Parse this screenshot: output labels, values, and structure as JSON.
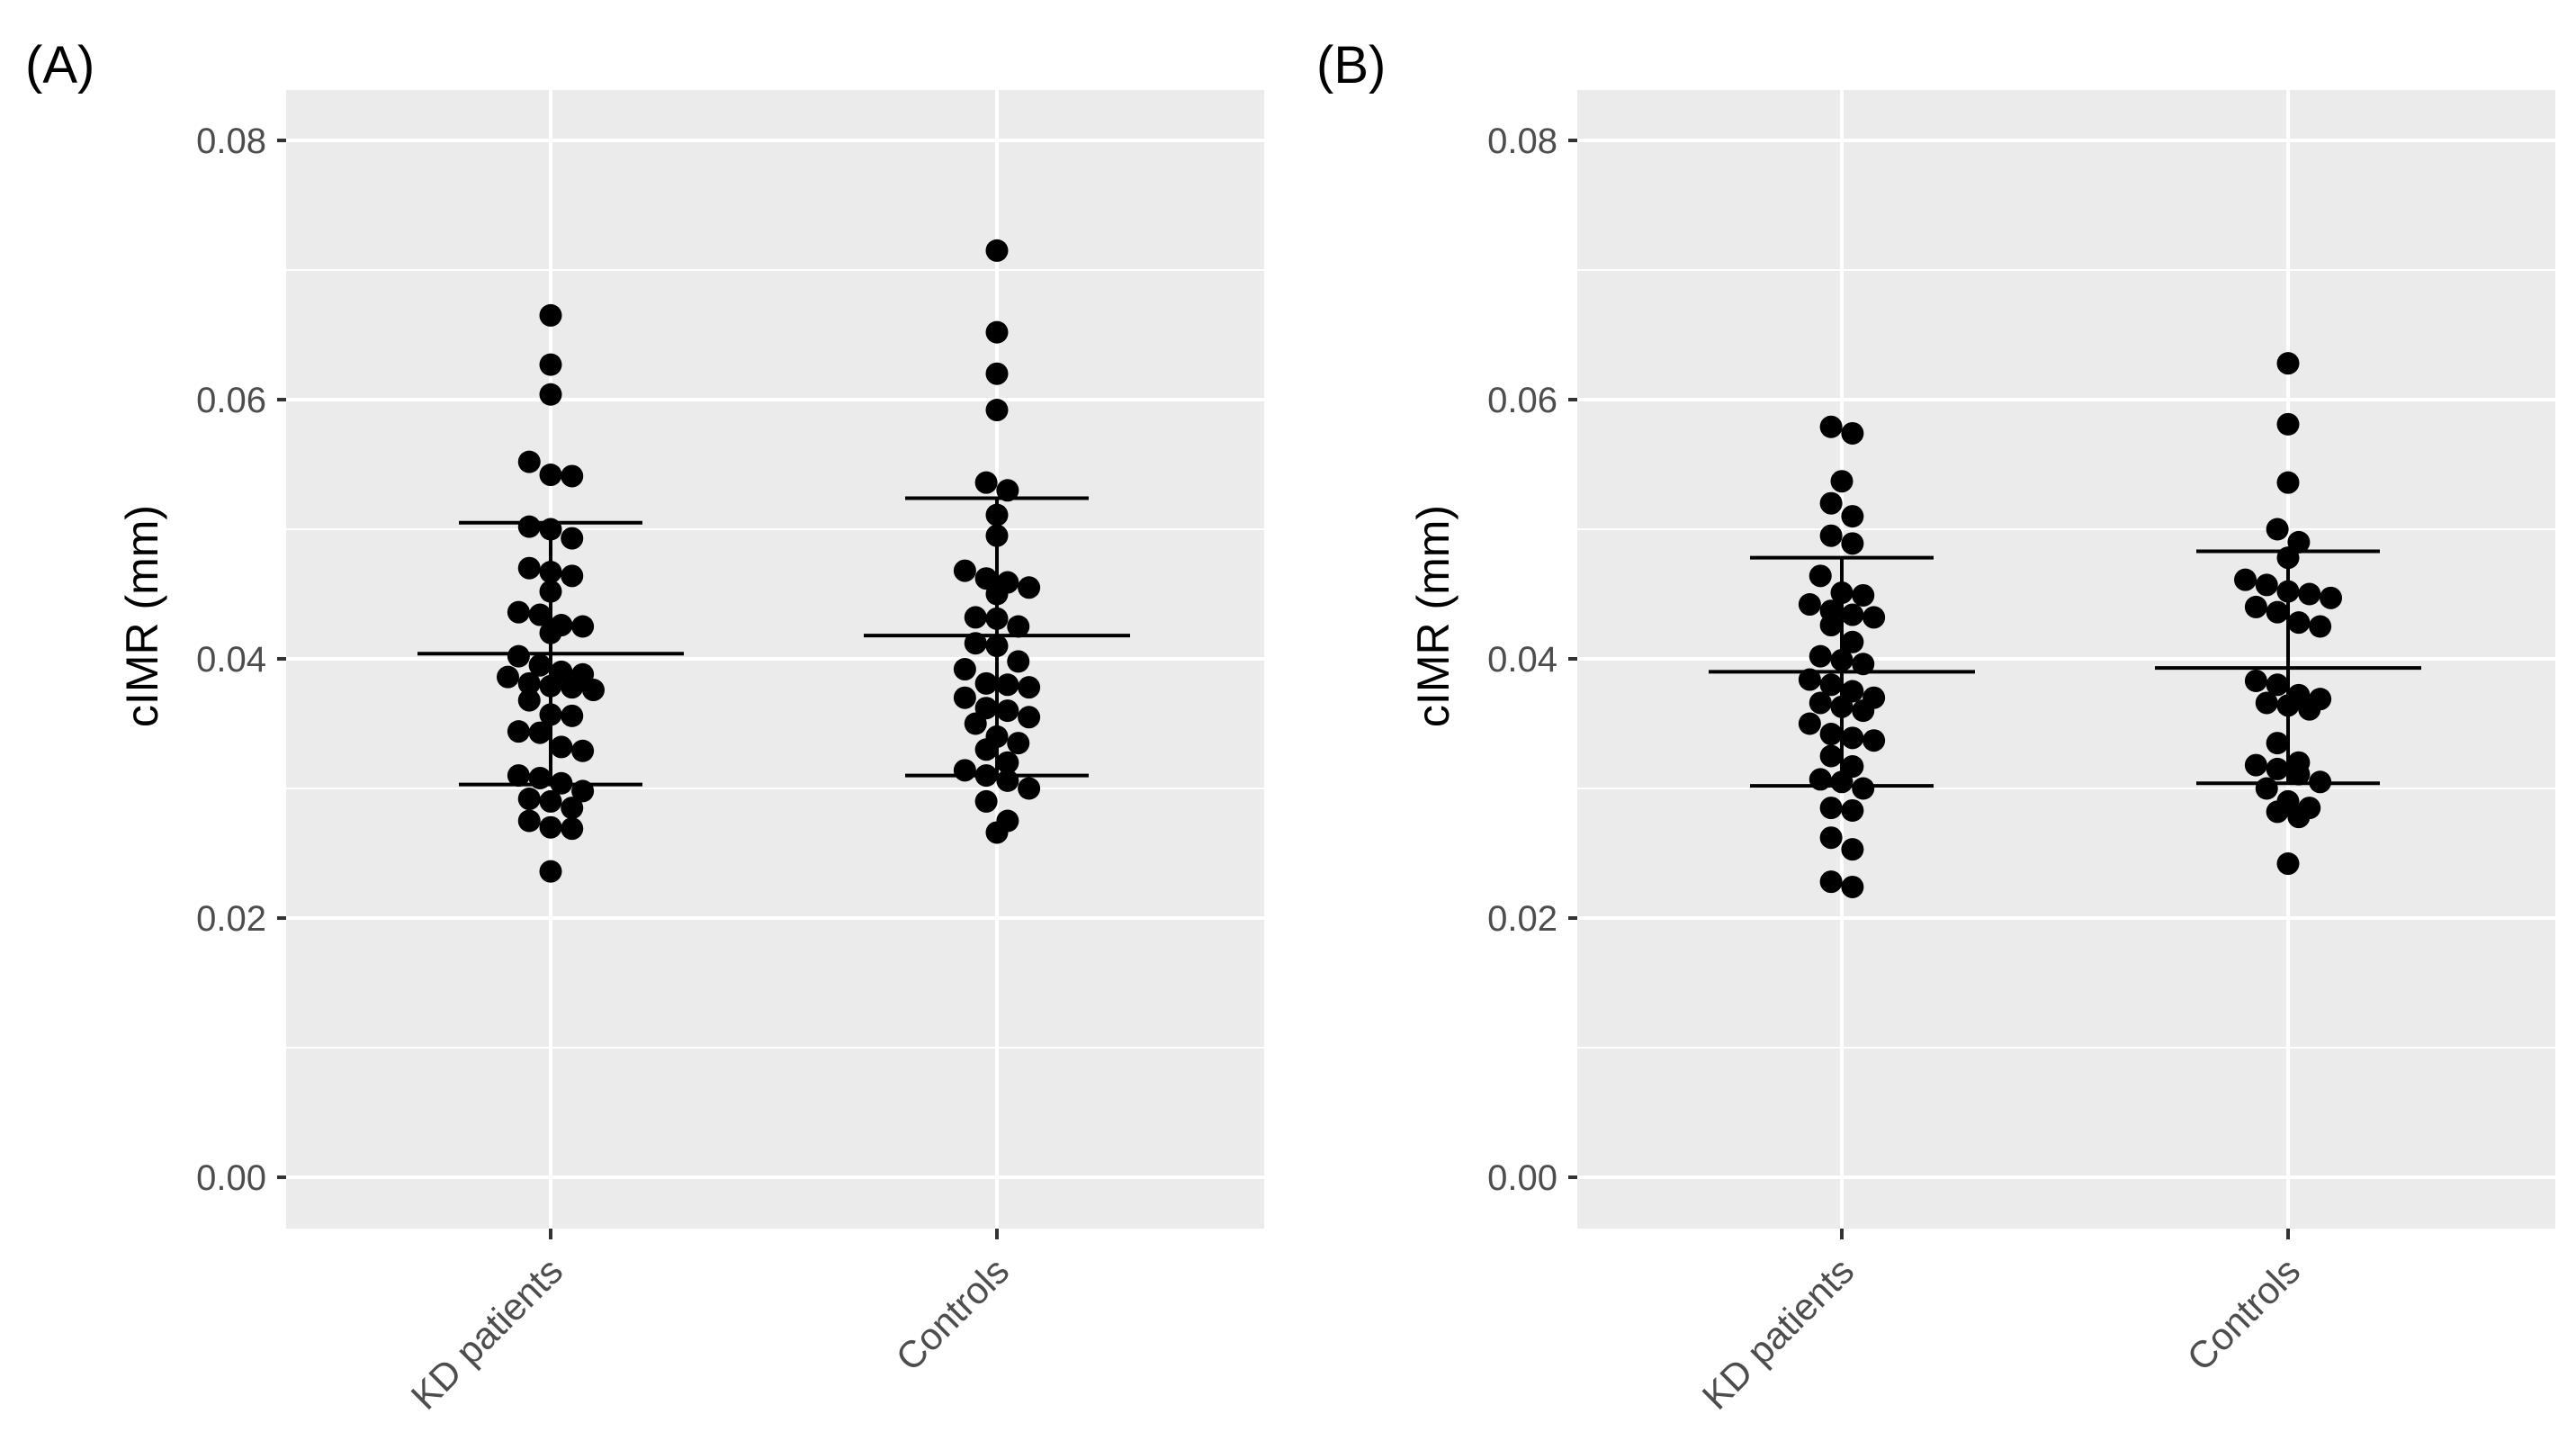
{
  "chart_data": [
    {
      "panel_label": "(A)",
      "type": "scatter",
      "subtype": "dot plot with mean ± SD",
      "ylabel": "cIMR (mm)",
      "xlabel": "",
      "ylim": [
        -0.004,
        0.084
      ],
      "yticks": [
        "0.00",
        "0.02",
        "0.04",
        "0.06",
        "0.08"
      ],
      "categories": [
        "KD patients",
        "Controls"
      ],
      "groups": [
        {
          "name": "KD patients",
          "mean": 0.0404,
          "upper": 0.0505,
          "lower": 0.0303,
          "values": [
            0.0665,
            0.0627,
            0.0604,
            0.0552,
            0.0542,
            0.0541,
            0.0502,
            0.05,
            0.0493,
            0.047,
            0.0467,
            0.0464,
            0.0452,
            0.0436,
            0.0434,
            0.0426,
            0.0425,
            0.042,
            0.0402,
            0.0395,
            0.039,
            0.0388,
            0.0386,
            0.0381,
            0.0379,
            0.0378,
            0.0376,
            0.0368,
            0.0357,
            0.0356,
            0.0344,
            0.0343,
            0.0332,
            0.0329,
            0.031,
            0.0308,
            0.0304,
            0.0298,
            0.0292,
            0.029,
            0.0285,
            0.0275,
            0.027,
            0.0269,
            0.0236
          ]
        },
        {
          "name": "Controls",
          "mean": 0.0418,
          "upper": 0.0524,
          "lower": 0.031,
          "values": [
            0.0715,
            0.0652,
            0.062,
            0.0592,
            0.0536,
            0.053,
            0.0511,
            0.0495,
            0.0468,
            0.0462,
            0.0459,
            0.0455,
            0.045,
            0.0432,
            0.0431,
            0.0425,
            0.0412,
            0.041,
            0.0398,
            0.0392,
            0.0381,
            0.038,
            0.0378,
            0.037,
            0.0362,
            0.036,
            0.0355,
            0.035,
            0.034,
            0.0335,
            0.033,
            0.032,
            0.0314,
            0.031,
            0.0306,
            0.03,
            0.029,
            0.0275,
            0.0266
          ]
        }
      ]
    },
    {
      "panel_label": "(B)",
      "type": "scatter",
      "subtype": "dot plot with mean ± SD",
      "ylabel": "cIMR (mm)",
      "xlabel": "",
      "ylim": [
        -0.004,
        0.084
      ],
      "yticks": [
        "0.00",
        "0.02",
        "0.04",
        "0.06",
        "0.08"
      ],
      "categories": [
        "KD patients",
        "Controls"
      ],
      "groups": [
        {
          "name": "KD patients",
          "mean": 0.039,
          "upper": 0.0478,
          "lower": 0.0302,
          "values": [
            0.0579,
            0.0574,
            0.0537,
            0.052,
            0.051,
            0.0495,
            0.0489,
            0.0464,
            0.0451,
            0.0449,
            0.0442,
            0.0437,
            0.0434,
            0.0432,
            0.0426,
            0.0413,
            0.0402,
            0.0399,
            0.0396,
            0.0384,
            0.038,
            0.0375,
            0.037,
            0.0366,
            0.0363,
            0.036,
            0.035,
            0.0342,
            0.0339,
            0.0337,
            0.0325,
            0.0317,
            0.0307,
            0.0305,
            0.03,
            0.0285,
            0.0283,
            0.0262,
            0.0253,
            0.0228,
            0.0224
          ]
        },
        {
          "name": "Controls",
          "mean": 0.0393,
          "upper": 0.0483,
          "lower": 0.0304,
          "values": [
            0.0628,
            0.0581,
            0.0536,
            0.05,
            0.049,
            0.0478,
            0.0461,
            0.0457,
            0.0452,
            0.045,
            0.0447,
            0.044,
            0.0436,
            0.0428,
            0.0425,
            0.0383,
            0.038,
            0.0372,
            0.0369,
            0.0366,
            0.0364,
            0.0361,
            0.0335,
            0.032,
            0.0318,
            0.0315,
            0.0311,
            0.0305,
            0.03,
            0.029,
            0.0285,
            0.0282,
            0.0278,
            0.0242
          ]
        }
      ]
    }
  ]
}
